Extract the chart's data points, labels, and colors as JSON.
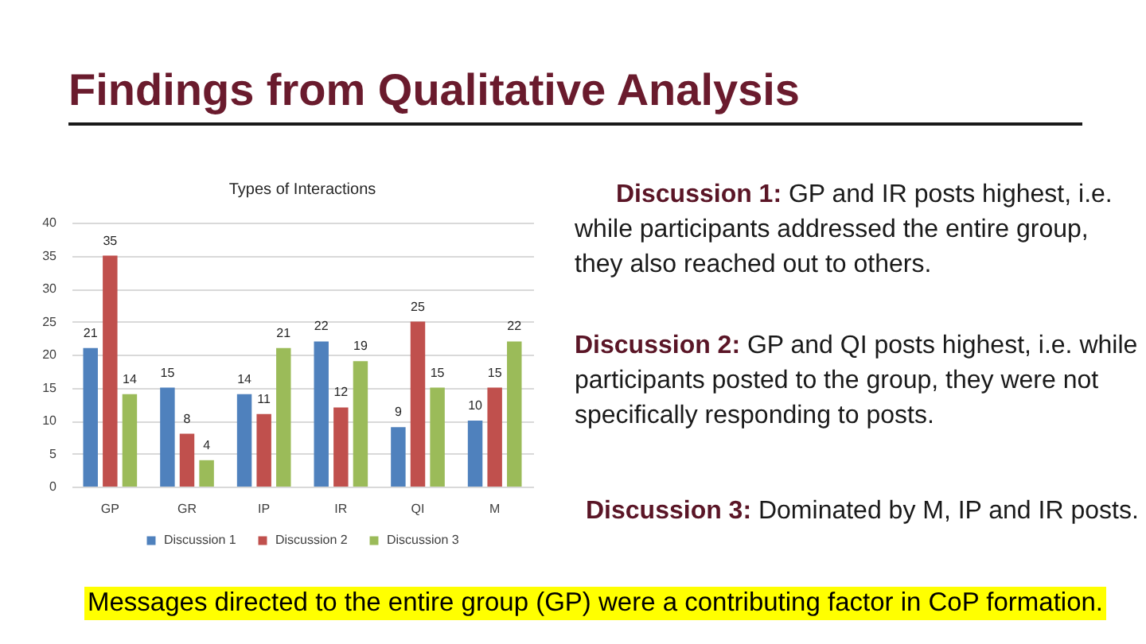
{
  "chart_data": {
    "type": "bar",
    "title": "Findings from Qualitative Analysis",
    "subtitle": "Types of Interactions",
    "categories": [
      "GP",
      "GR",
      "IP",
      "IR",
      "QI",
      "M"
    ],
    "series": [
      {
        "name": "Discussion 1",
        "color": "#4f81bd",
        "values": [
          21,
          15,
          14,
          22,
          9,
          10
        ]
      },
      {
        "name": "Discussion 2",
        "color": "#c0504d",
        "values": [
          35,
          8,
          11,
          12,
          25,
          15
        ]
      },
      {
        "name": "Discussion 3",
        "color": "#9bbb59",
        "values": [
          14,
          4,
          21,
          19,
          15,
          22
        ]
      }
    ],
    "ylim": [
      0,
      40
    ],
    "yticks": [
      0,
      5,
      10,
      15,
      20,
      25,
      30,
      35,
      40
    ],
    "grid": "y",
    "legend": "bottom",
    "data_labels": true,
    "annotations": [
      "Discussion 1: GP and IR posts highest, i.e. while participants addressed the entire group, they also reached out to others.",
      "Discussion 2: GP and QI posts highest, i.e. while participants posted to the group, they were not specifically responding to posts.",
      "Discussion 3: Dominated by M, IP and IR posts.",
      "Messages directed to the entire group (GP) were a contributing factor in CoP formation."
    ]
  }
}
